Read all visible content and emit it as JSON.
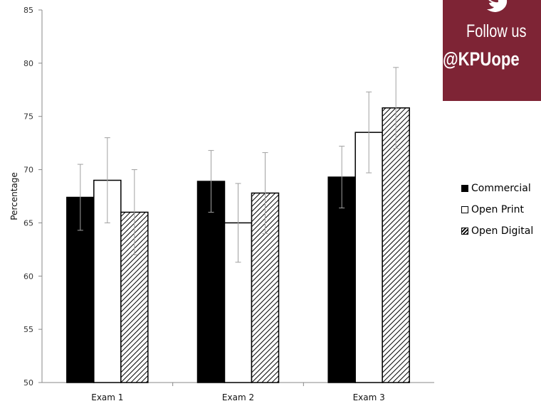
{
  "chart_data": {
    "type": "bar",
    "title": "",
    "xlabel": "",
    "ylabel": "Percentage",
    "ylim": [
      50,
      85
    ],
    "yticks": [
      50,
      55,
      60,
      65,
      70,
      75,
      80,
      85
    ],
    "categories": [
      "Exam 1",
      "Exam 2",
      "Exam 3"
    ],
    "series": [
      {
        "name": "Commercial",
        "fill": "solid",
        "values": [
          67.4,
          68.9,
          69.3
        ],
        "error": [
          3.1,
          2.9,
          2.9
        ]
      },
      {
        "name": "Open Print",
        "fill": "white",
        "values": [
          69.0,
          65.0,
          73.5
        ],
        "error": [
          4.0,
          3.7,
          3.8
        ]
      },
      {
        "name": "Open Digital",
        "fill": "hatch",
        "values": [
          66.0,
          67.8,
          75.8
        ],
        "error": [
          4.0,
          3.8,
          3.8
        ]
      }
    ],
    "legend_position": "right",
    "grid": false,
    "colors": {
      "bar_fill": "#000000",
      "bar_stroke": "#000000",
      "error_bar": "#a0a0a0",
      "axis": "#888888"
    }
  },
  "banner": {
    "line1": "Follow us",
    "line2": "@KPUope",
    "icon": "twitter-bird-icon",
    "color": "#7e2435"
  }
}
